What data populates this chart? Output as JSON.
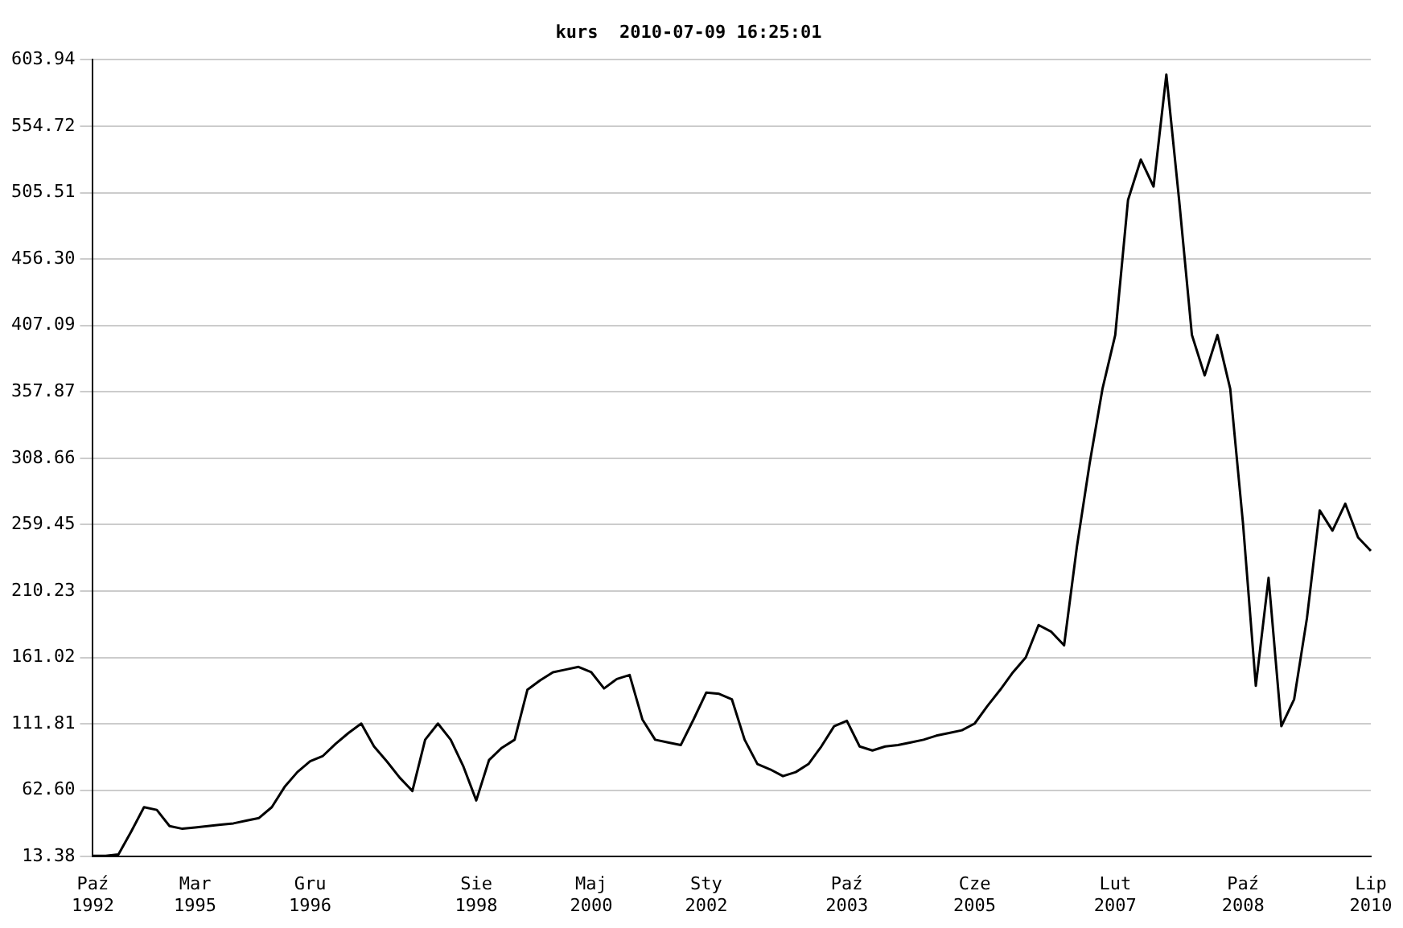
{
  "chart_data": {
    "type": "line",
    "title": "kurs  2010-07-09 16:25:01",
    "categories": [
      "Paź 1992",
      null,
      null,
      null,
      null,
      null,
      null,
      null,
      "Mar 1995",
      null,
      null,
      null,
      null,
      null,
      null,
      null,
      null,
      "Gru 1996",
      null,
      null,
      null,
      null,
      null,
      null,
      null,
      null,
      null,
      null,
      null,
      null,
      "Sie 1998",
      null,
      null,
      null,
      null,
      null,
      null,
      null,
      null,
      "Maj 2000",
      null,
      null,
      null,
      null,
      null,
      null,
      null,
      null,
      "Sty 2002",
      null,
      null,
      null,
      null,
      null,
      null,
      null,
      null,
      null,
      null,
      "Paź 2003",
      null,
      null,
      null,
      null,
      null,
      null,
      null,
      null,
      null,
      "Cze 2005",
      null,
      null,
      null,
      null,
      null,
      null,
      null,
      null,
      null,
      null,
      "Lut 2007",
      null,
      null,
      null,
      null,
      null,
      null,
      null,
      null,
      null,
      "Paź 2008",
      null,
      null,
      null,
      null,
      null,
      null,
      null,
      null,
      null,
      "Lip 2010"
    ],
    "series": [
      {
        "color": "#000000",
        "values": [
          14,
          14,
          15,
          32,
          50,
          48,
          36,
          34,
          35,
          36,
          37,
          38,
          40,
          42,
          50,
          65,
          76,
          84,
          88,
          97,
          105,
          112,
          95,
          84,
          72,
          62,
          100,
          112,
          100,
          80,
          55,
          85,
          94,
          100,
          137,
          144,
          150,
          152,
          154,
          150,
          138,
          145,
          148,
          115,
          100,
          98,
          96,
          115,
          135,
          134,
          130,
          100,
          82,
          78,
          73,
          76,
          82,
          95,
          110,
          114,
          95,
          92,
          95,
          96,
          98,
          100,
          103,
          105,
          107,
          112,
          125,
          137,
          150,
          161,
          185,
          180,
          170,
          243,
          305,
          360,
          400,
          500,
          530,
          510,
          593,
          500,
          400,
          370,
          400,
          360,
          260,
          140,
          220,
          110,
          130,
          190,
          270,
          255,
          275,
          250,
          240
        ]
      }
    ],
    "ylim": [
      13.38,
      603.94
    ],
    "yticks": [
      {
        "value": 13.38,
        "label": "13.38"
      },
      {
        "value": 62.6,
        "label": "62.60"
      },
      {
        "value": 111.81,
        "label": "111.81"
      },
      {
        "value": 161.02,
        "label": "161.02"
      },
      {
        "value": 210.23,
        "label": "210.23"
      },
      {
        "value": 259.45,
        "label": "259.45"
      },
      {
        "value": 308.66,
        "label": "308.66"
      },
      {
        "value": 357.87,
        "label": "357.87"
      },
      {
        "value": 407.09,
        "label": "407.09"
      },
      {
        "value": 456.3,
        "label": "456.30"
      },
      {
        "value": 505.51,
        "label": "505.51"
      },
      {
        "value": 554.72,
        "label": "554.72"
      },
      {
        "value": 603.94,
        "label": "603.94"
      }
    ],
    "grid": "y",
    "legend": false,
    "marker": "none",
    "line_style": "solid"
  }
}
